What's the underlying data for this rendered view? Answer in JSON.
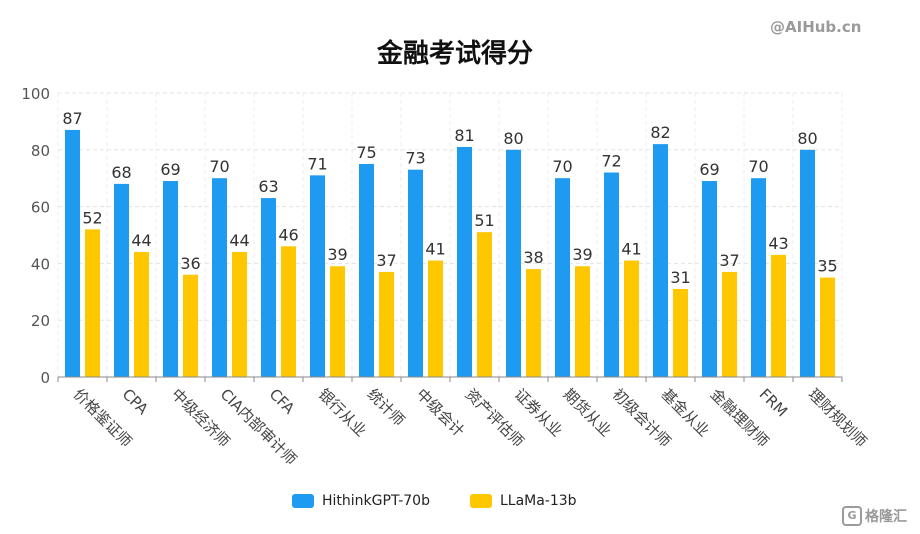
{
  "watermark": "@AIHub.cn",
  "corner_logo": {
    "icon_char": "G",
    "text": "格隆汇"
  },
  "chart_data": {
    "type": "bar",
    "title": "金融考试得分",
    "xlabel": "",
    "ylabel": "",
    "ylim": [
      0,
      100
    ],
    "yticks": [
      0,
      20,
      40,
      60,
      80,
      100
    ],
    "grid": true,
    "legend_position": "bottom-center",
    "categories": [
      "价格鉴证师",
      "CPA",
      "中级经济师",
      "CIA内部审计师",
      "CFA",
      "银行从业",
      "统计师",
      "中级会计",
      "资产评估师",
      "证券从业",
      "期货从业",
      "初级会计师",
      "基金从业",
      "金融理财师",
      "FRM",
      "理财规划师"
    ],
    "series": [
      {
        "name": "HithinkGPT-70b",
        "color": "#1E9BF0",
        "values": [
          87,
          68,
          69,
          70,
          63,
          71,
          75,
          73,
          81,
          80,
          70,
          72,
          82,
          69,
          70,
          80
        ]
      },
      {
        "name": "LLaMa-13b",
        "color": "#FFC700",
        "values": [
          52,
          44,
          36,
          44,
          46,
          39,
          37,
          41,
          51,
          38,
          39,
          41,
          31,
          37,
          43,
          35
        ]
      }
    ]
  }
}
